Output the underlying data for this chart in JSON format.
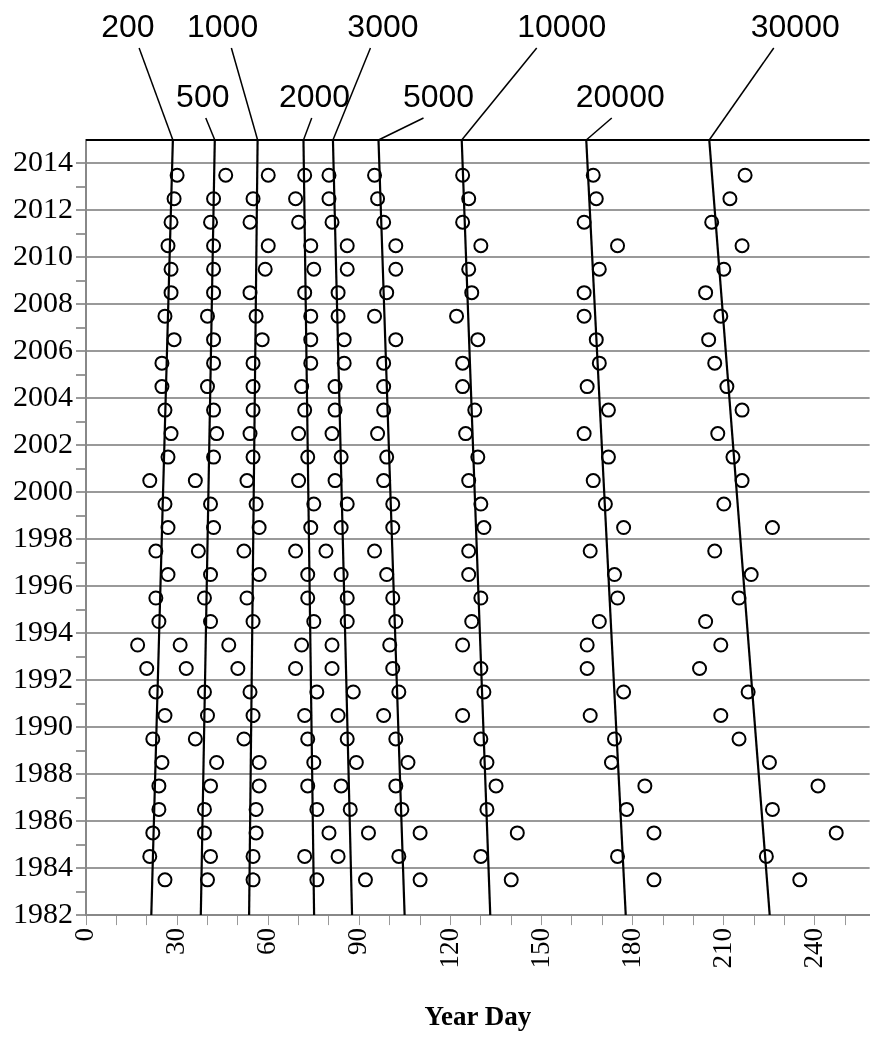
{
  "chart_data": {
    "type": "scatter",
    "xlabel": "Year Day",
    "xlim": [
      0,
      258
    ],
    "ylim": [
      1982,
      2015
    ],
    "xticks": [
      0,
      {
        "value": 10,
        "label": null
      },
      {
        "value": 20,
        "label": null
      },
      30,
      {
        "value": 40,
        "label": null
      },
      {
        "value": 50,
        "label": null
      },
      60,
      {
        "value": 70,
        "label": null
      },
      {
        "value": 80,
        "label": null
      },
      90,
      {
        "value": 100,
        "label": null
      },
      {
        "value": 110,
        "label": null
      },
      120,
      {
        "value": 130,
        "label": null
      },
      {
        "value": 140,
        "label": null
      },
      150,
      {
        "value": 160,
        "label": null
      },
      {
        "value": 170,
        "label": null
      },
      180,
      {
        "value": 190,
        "label": null
      },
      {
        "value": 200,
        "label": null
      },
      210,
      {
        "value": 220,
        "label": null
      },
      {
        "value": 230,
        "label": null
      },
      240,
      {
        "value": 250,
        "label": null
      }
    ],
    "yticks": [
      1982,
      {
        "value": 1983,
        "label": null
      },
      1984,
      {
        "value": 1985,
        "label": null
      },
      1986,
      {
        "value": 1987,
        "label": null
      },
      1988,
      {
        "value": 1989,
        "label": null
      },
      1990,
      {
        "value": 1991,
        "label": null
      },
      1992,
      {
        "value": 1993,
        "label": null
      },
      1994,
      {
        "value": 1995,
        "label": null
      },
      1996,
      {
        "value": 1997,
        "label": null
      },
      1998,
      {
        "value": 1999,
        "label": null
      },
      2000,
      {
        "value": 2001,
        "label": null
      },
      2002,
      {
        "value": 2003,
        "label": null
      },
      2004,
      {
        "value": 2005,
        "label": null
      },
      2006,
      {
        "value": 2007,
        "label": null
      },
      2008,
      {
        "value": 2009,
        "label": null
      },
      2010,
      {
        "value": 2011,
        "label": null
      },
      2012,
      {
        "value": 2013,
        "label": null
      },
      2014
    ],
    "grid": "y",
    "legend": false,
    "marker": "circle",
    "line_style": "solid",
    "series": [
      {
        "color": "#000000",
        "x": [
          30,
          29,
          28,
          27,
          28,
          28,
          26,
          29,
          25,
          25,
          26,
          28,
          27,
          21,
          26,
          27,
          23,
          27,
          23,
          24,
          17,
          20,
          23,
          26,
          22,
          25,
          24,
          24,
          22,
          21,
          26
        ],
        "values": [
          2013.5,
          2012.5,
          2011.5,
          2010.5,
          2009.5,
          2008.5,
          2007.5,
          2006.5,
          2005.5,
          2004.5,
          2003.5,
          2002.5,
          2001.5,
          2000.5,
          1999.5,
          1998.5,
          1997.5,
          1996.5,
          1995.5,
          1994.5,
          1993.5,
          1992.5,
          1991.5,
          1990.5,
          1989.5,
          1988.5,
          1987.5,
          1986.5,
          1985.5,
          1984.5,
          1983.5
        ]
      },
      {
        "color": "#000000",
        "x": [
          46,
          42,
          41,
          42,
          42,
          42,
          40,
          42,
          42,
          40,
          42,
          43,
          42,
          36,
          41,
          42,
          37,
          41,
          39,
          41,
          31,
          33,
          39,
          40,
          36,
          43,
          41,
          39,
          39,
          41,
          40
        ],
        "values": [
          2013.5,
          2012.5,
          2011.5,
          2010.5,
          2009.5,
          2008.5,
          2007.5,
          2006.5,
          2005.5,
          2004.5,
          2003.5,
          2002.5,
          2001.5,
          2000.5,
          1999.5,
          1998.5,
          1997.5,
          1996.5,
          1995.5,
          1994.5,
          1993.5,
          1992.5,
          1991.5,
          1990.5,
          1989.5,
          1988.5,
          1987.5,
          1986.5,
          1985.5,
          1984.5,
          1983.5
        ]
      },
      {
        "color": "#000000",
        "x": [
          60,
          55,
          54,
          60,
          59,
          54,
          56,
          58,
          55,
          55,
          55,
          54,
          55,
          53,
          56,
          57,
          52,
          57,
          53,
          55,
          47,
          50,
          54,
          55,
          52,
          57,
          57,
          56,
          56,
          55,
          55
        ],
        "values": [
          2013.5,
          2012.5,
          2011.5,
          2010.5,
          2009.5,
          2008.5,
          2007.5,
          2006.5,
          2005.5,
          2004.5,
          2003.5,
          2002.5,
          2001.5,
          2000.5,
          1999.5,
          1998.5,
          1997.5,
          1996.5,
          1995.5,
          1994.5,
          1993.5,
          1992.5,
          1991.5,
          1990.5,
          1989.5,
          1988.5,
          1987.5,
          1986.5,
          1985.5,
          1984.5,
          1983.5
        ]
      },
      {
        "color": "#000000",
        "x": [
          72,
          69,
          70,
          74,
          75,
          72,
          74,
          74,
          74,
          71,
          72,
          70,
          73,
          70,
          75,
          74,
          69,
          73,
          73,
          75,
          71,
          69,
          76,
          72,
          73,
          75,
          73,
          76,
          80,
          72,
          76
        ],
        "values": [
          2013.5,
          2012.5,
          2011.5,
          2010.5,
          2009.5,
          2008.5,
          2007.5,
          2006.5,
          2005.5,
          2004.5,
          2003.5,
          2002.5,
          2001.5,
          2000.5,
          1999.5,
          1998.5,
          1997.5,
          1996.5,
          1995.5,
          1994.5,
          1993.5,
          1992.5,
          1991.5,
          1990.5,
          1989.5,
          1988.5,
          1987.5,
          1986.5,
          1985.5,
          1984.5,
          1983.5
        ]
      },
      {
        "color": "#000000",
        "x": [
          80,
          80,
          81,
          86,
          86,
          83,
          83,
          85,
          85,
          82,
          82,
          81,
          84,
          82,
          86,
          84,
          79,
          84,
          86,
          86,
          81,
          81,
          88,
          83,
          86,
          89,
          84,
          87,
          93,
          83,
          92
        ],
        "values": [
          2013.5,
          2012.5,
          2011.5,
          2010.5,
          2009.5,
          2008.5,
          2007.5,
          2006.5,
          2005.5,
          2004.5,
          2003.5,
          2002.5,
          2001.5,
          2000.5,
          1999.5,
          1998.5,
          1997.5,
          1996.5,
          1995.5,
          1994.5,
          1993.5,
          1992.5,
          1991.5,
          1990.5,
          1989.5,
          1988.5,
          1987.5,
          1986.5,
          1985.5,
          1984.5,
          1983.5
        ]
      },
      {
        "color": "#000000",
        "x": [
          95,
          96,
          98,
          102,
          102,
          99,
          95,
          102,
          98,
          98,
          98,
          96,
          99,
          98,
          101,
          101,
          95,
          99,
          101,
          102,
          100,
          101,
          103,
          98,
          102,
          106,
          102,
          104,
          110,
          103,
          110
        ],
        "values": [
          2013.5,
          2012.5,
          2011.5,
          2010.5,
          2009.5,
          2008.5,
          2007.5,
          2006.5,
          2005.5,
          2004.5,
          2003.5,
          2002.5,
          2001.5,
          2000.5,
          1999.5,
          1998.5,
          1997.5,
          1996.5,
          1995.5,
          1994.5,
          1993.5,
          1992.5,
          1991.5,
          1990.5,
          1989.5,
          1988.5,
          1987.5,
          1986.5,
          1985.5,
          1984.5,
          1983.5
        ]
      },
      {
        "color": "#000000",
        "x": [
          124,
          126,
          124,
          130,
          126,
          127,
          122,
          129,
          124,
          124,
          128,
          125,
          129,
          126,
          130,
          131,
          126,
          126,
          130,
          127,
          124,
          130,
          131,
          124,
          130,
          132,
          135,
          132,
          142,
          130,
          140
        ],
        "values": [
          2013.5,
          2012.5,
          2011.5,
          2010.5,
          2009.5,
          2008.5,
          2007.5,
          2006.5,
          2005.5,
          2004.5,
          2003.5,
          2002.5,
          2001.5,
          2000.5,
          1999.5,
          1998.5,
          1997.5,
          1996.5,
          1995.5,
          1994.5,
          1993.5,
          1992.5,
          1991.5,
          1990.5,
          1989.5,
          1988.5,
          1987.5,
          1986.5,
          1985.5,
          1984.5,
          1983.5
        ]
      },
      {
        "color": "#000000",
        "x": [
          167,
          168,
          164,
          175,
          169,
          164,
          164,
          168,
          169,
          165,
          172,
          164,
          172,
          167,
          171,
          177,
          166,
          174,
          175,
          169,
          165,
          165,
          177,
          166,
          174,
          173,
          184,
          178,
          187,
          175,
          187
        ],
        "values": [
          2013.5,
          2012.5,
          2011.5,
          2010.5,
          2009.5,
          2008.5,
          2007.5,
          2006.5,
          2005.5,
          2004.5,
          2003.5,
          2002.5,
          2001.5,
          2000.5,
          1999.5,
          1998.5,
          1997.5,
          1996.5,
          1995.5,
          1994.5,
          1993.5,
          1992.5,
          1991.5,
          1990.5,
          1989.5,
          1988.5,
          1987.5,
          1986.5,
          1985.5,
          1984.5,
          1983.5
        ]
      },
      {
        "color": "#000000",
        "x": [
          217,
          212,
          206,
          216,
          210,
          204,
          209,
          205,
          207,
          211,
          216,
          208,
          213,
          216,
          210,
          226,
          207,
          219,
          215,
          204,
          209,
          202,
          218,
          209,
          215,
          225,
          241,
          226,
          247,
          224,
          235
        ],
        "values": [
          2013.5,
          2012.5,
          2011.5,
          2010.5,
          2009.5,
          2008.5,
          2007.5,
          2006.5,
          2005.5,
          2004.5,
          2003.5,
          2002.5,
          2001.5,
          2000.5,
          1999.5,
          1998.5,
          1997.5,
          1996.5,
          1995.5,
          1994.5,
          1993.5,
          1992.5,
          1991.5,
          1990.5,
          1989.5,
          1988.5,
          1987.5,
          1986.5,
          1985.5,
          1984.5,
          1983.5
        ]
      },
      {
        "type": "line",
        "name": "200",
        "color": "#000000",
        "marker": "none",
        "x": [
          21.5,
          28.6
        ],
        "values": [
          1982,
          2015
        ]
      },
      {
        "type": "line",
        "name": "500",
        "color": "#000000",
        "marker": "none",
        "x": [
          37.8,
          42.4
        ],
        "values": [
          1982,
          2015
        ]
      },
      {
        "type": "line",
        "name": "1000",
        "color": "#000000",
        "marker": "none",
        "x": [
          53.7,
          56.5
        ],
        "values": [
          1982,
          2015
        ]
      },
      {
        "type": "line",
        "name": "2000",
        "color": "#000000",
        "marker": "none",
        "x": [
          75.1,
          71.6
        ],
        "values": [
          1982,
          2015
        ]
      },
      {
        "type": "line",
        "name": "3000",
        "color": "#000000",
        "marker": "none",
        "x": [
          87.6,
          81.3
        ],
        "values": [
          1982,
          2015
        ]
      },
      {
        "type": "line",
        "name": "5000",
        "color": "#000000",
        "marker": "none",
        "x": [
          104.9,
          96.3
        ],
        "values": [
          1982,
          2015
        ]
      },
      {
        "type": "line",
        "name": "10000",
        "color": "#000000",
        "marker": "none",
        "x": [
          133.1,
          123.7
        ],
        "values": [
          1982,
          2015
        ]
      },
      {
        "type": "line",
        "name": "20000",
        "color": "#000000",
        "marker": "none",
        "x": [
          177.7,
          164.7
        ],
        "values": [
          1982,
          2015
        ]
      },
      {
        "type": "line",
        "name": "30000",
        "color": "#000000",
        "marker": "none",
        "x": [
          225.1,
          205.2
        ],
        "values": [
          1982,
          2015
        ]
      }
    ]
  }
}
